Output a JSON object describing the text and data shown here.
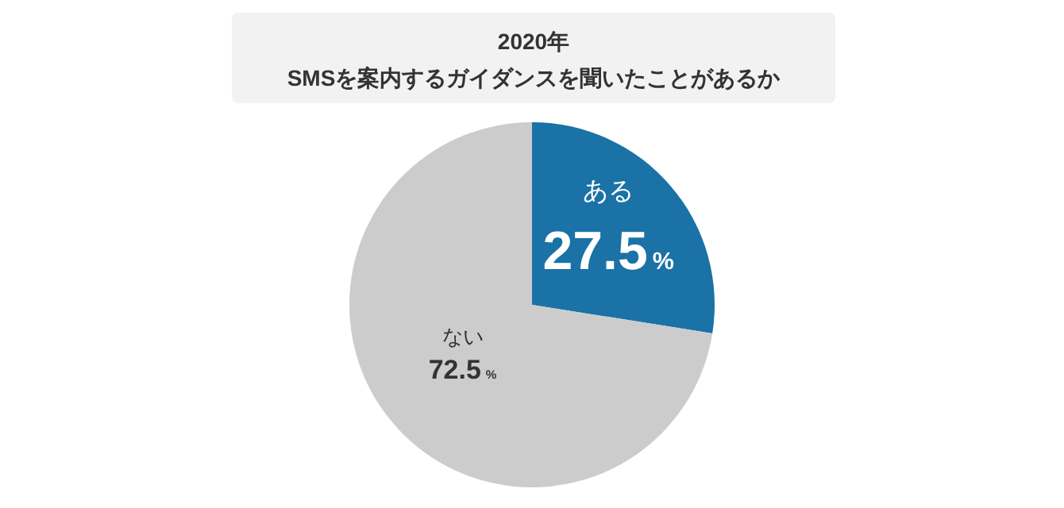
{
  "chart_data": {
    "type": "pie",
    "title": "2020年",
    "subtitle": "SMSを案内するガイダンスを聞いたことがあるか",
    "categories": [
      "ある",
      "ない"
    ],
    "values": [
      27.5,
      72.5
    ],
    "colors": [
      "#1a72a6",
      "#cccccc"
    ],
    "value_labels": [
      "27.5%",
      "72.5%"
    ],
    "legend": false
  }
}
